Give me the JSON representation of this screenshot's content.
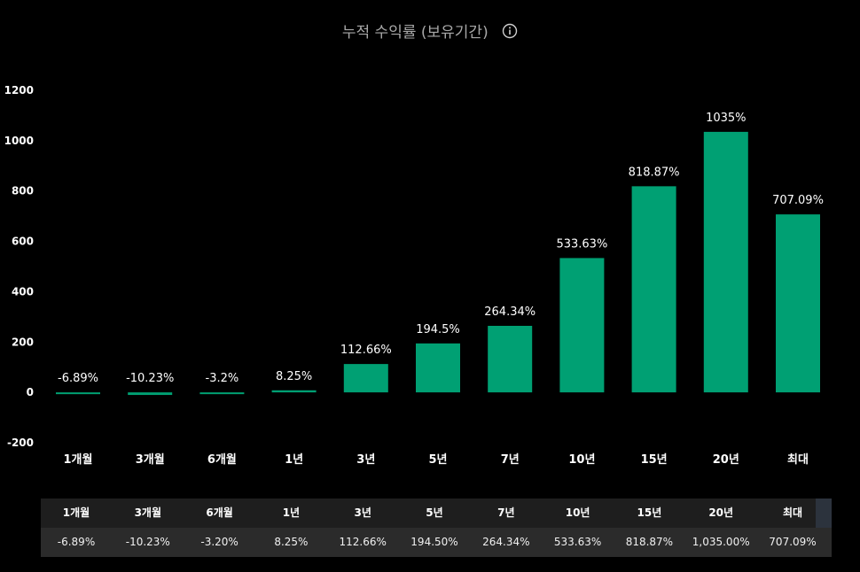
{
  "title": "누적 수익률 (보유기간)",
  "colors": {
    "bar": "#00a073",
    "background": "#000000"
  },
  "icons": {
    "info": "info-circle-icon"
  },
  "chart_data": {
    "type": "bar",
    "title": "누적 수익률 (보유기간)",
    "categories": [
      "1개월",
      "3개월",
      "6개월",
      "1년",
      "3년",
      "5년",
      "7년",
      "10년",
      "15년",
      "20년",
      "최대"
    ],
    "values": [
      -6.89,
      -10.23,
      -3.2,
      8.25,
      112.66,
      194.5,
      264.34,
      533.63,
      818.87,
      1035,
      707.09
    ],
    "data_labels": [
      "-6.89%",
      "-10.23%",
      "-3.2%",
      "8.25%",
      "112.66%",
      "194.5%",
      "264.34%",
      "533.63%",
      "818.87%",
      "1035%",
      "707.09%"
    ],
    "yticks": [
      "1200",
      "1000",
      "800",
      "600",
      "400",
      "200",
      "0",
      "-200"
    ],
    "ylim": [
      -200,
      1200
    ],
    "xlabel": "",
    "ylabel": "",
    "grid": false,
    "legend": "none"
  },
  "table": {
    "headers": [
      "1개월",
      "3개월",
      "6개월",
      "1년",
      "3년",
      "5년",
      "7년",
      "10년",
      "15년",
      "20년",
      "최대"
    ],
    "values": [
      "-6.89%",
      "-10.23%",
      "-3.20%",
      "8.25%",
      "112.66%",
      "194.50%",
      "264.34%",
      "533.63%",
      "818.87%",
      "1,035.00%",
      "707.09%"
    ]
  }
}
